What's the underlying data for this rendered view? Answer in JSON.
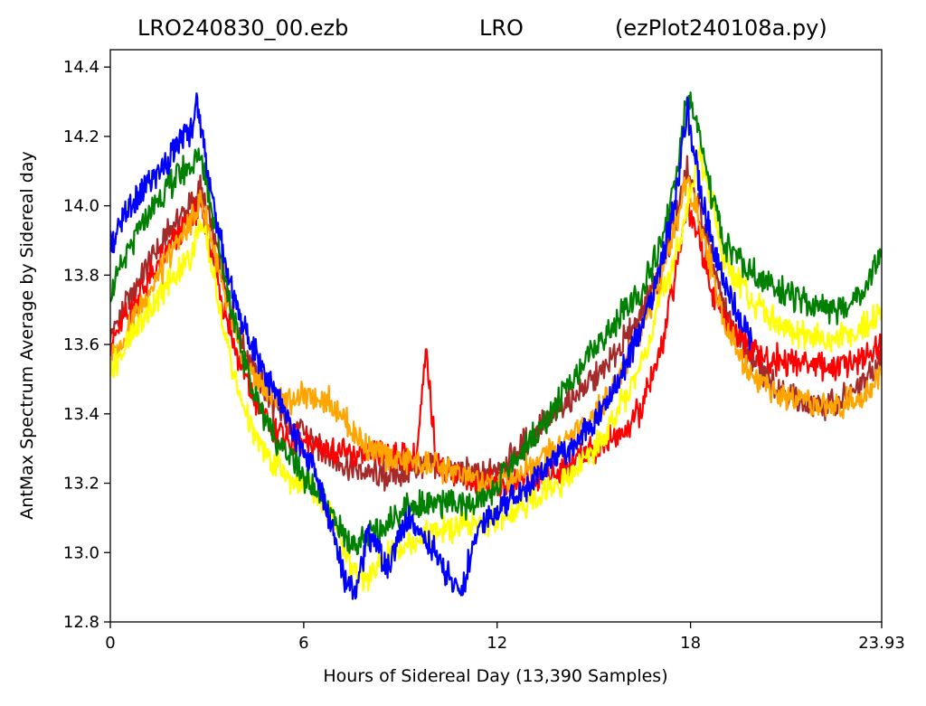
{
  "chart_data": {
    "type": "line",
    "title_parts": [
      "LRO240830_00.ezb",
      "LRO",
      "(ezPlot240108a.py)"
    ],
    "xlabel": "Hours of Sidereal Day  (13,390 Samples)",
    "ylabel": "AntMax Spectrum Average by Sidereal day",
    "xlim": [
      0,
      23.93
    ],
    "ylim": [
      12.8,
      14.45
    ],
    "x_ticks": [
      0,
      6,
      12,
      18,
      23.93
    ],
    "x_tick_labels": [
      "0",
      "6",
      "12",
      "18",
      "23.93"
    ],
    "y_ticks": [
      12.8,
      13.0,
      13.2,
      13.4,
      13.6,
      13.8,
      14.0,
      14.2,
      14.4
    ],
    "y_tick_labels": [
      "12.8",
      "13.0",
      "13.2",
      "13.4",
      "13.6",
      "13.8",
      "14.0",
      "14.2",
      "14.4"
    ],
    "grid": false,
    "series": [
      {
        "color": "#a52a2a",
        "x": [
          0,
          0.5,
          1,
          1.5,
          2,
          2.5,
          2.8,
          3.1,
          3.5,
          4,
          4.5,
          5,
          5.5,
          6,
          6.5,
          7,
          7.5,
          8,
          8.5,
          9,
          9.5,
          10,
          10.5,
          11,
          11.5,
          12,
          12.5,
          13,
          13.5,
          14,
          14.5,
          15,
          15.5,
          16,
          16.5,
          17,
          17.5,
          17.9,
          18.3,
          18.7,
          19,
          19.5,
          20,
          20.5,
          21,
          21.5,
          22,
          22.5,
          23,
          23.5,
          23.93
        ],
        "y": [
          13.62,
          13.72,
          13.8,
          13.88,
          13.95,
          14.0,
          14.05,
          13.95,
          13.8,
          13.62,
          13.52,
          13.43,
          13.38,
          13.34,
          13.3,
          13.27,
          13.24,
          13.23,
          13.22,
          13.23,
          13.24,
          13.25,
          13.24,
          13.23,
          13.22,
          13.24,
          13.28,
          13.33,
          13.38,
          13.42,
          13.46,
          13.5,
          13.55,
          13.62,
          13.7,
          13.8,
          13.95,
          14.1,
          13.98,
          13.82,
          13.72,
          13.62,
          13.54,
          13.5,
          13.46,
          13.43,
          13.42,
          13.43,
          13.46,
          13.5,
          13.55
        ]
      },
      {
        "color": "#ff0000",
        "x": [
          0,
          0.5,
          1,
          1.5,
          2,
          2.5,
          2.8,
          3.1,
          3.5,
          4,
          4.5,
          5,
          5.5,
          6,
          6.5,
          7,
          7.5,
          8,
          8.5,
          9,
          9.5,
          9.8,
          10.1,
          10.5,
          11,
          11.5,
          12,
          12.5,
          13,
          13.5,
          14,
          14.5,
          15,
          15.5,
          16,
          16.5,
          17,
          17.5,
          17.9,
          18.3,
          18.7,
          19,
          19.5,
          20,
          20.5,
          21,
          21.5,
          22,
          22.5,
          23,
          23.5,
          23.93
        ],
        "y": [
          13.6,
          13.68,
          13.76,
          13.83,
          13.9,
          13.96,
          14.0,
          13.88,
          13.72,
          13.55,
          13.43,
          13.36,
          13.33,
          13.31,
          13.3,
          13.29,
          13.28,
          13.28,
          13.28,
          13.28,
          13.27,
          13.58,
          13.27,
          13.24,
          13.22,
          13.2,
          13.2,
          13.2,
          13.21,
          13.22,
          13.24,
          13.27,
          13.3,
          13.32,
          13.35,
          13.42,
          13.55,
          13.78,
          14.0,
          13.9,
          13.75,
          13.68,
          13.62,
          13.58,
          13.56,
          13.55,
          13.55,
          13.54,
          13.53,
          13.55,
          13.57,
          13.6
        ]
      },
      {
        "color": "#ffa500",
        "x": [
          0,
          0.5,
          1,
          1.5,
          2,
          2.5,
          2.8,
          3.1,
          3.5,
          4,
          4.5,
          5,
          5.5,
          6,
          6.5,
          7,
          7.5,
          8,
          8.5,
          9,
          9.5,
          10,
          10.5,
          11,
          11.5,
          12,
          12.5,
          13,
          13.5,
          14,
          14.5,
          15,
          15.5,
          16,
          16.5,
          17,
          17.5,
          17.9,
          18.3,
          18.7,
          19,
          19.5,
          20,
          20.5,
          21,
          21.5,
          22,
          22.5,
          23,
          23.5,
          23.93
        ],
        "y": [
          13.55,
          13.64,
          13.72,
          13.8,
          13.88,
          13.95,
          14.02,
          13.92,
          13.75,
          13.58,
          13.5,
          13.45,
          13.44,
          13.45,
          13.45,
          13.42,
          13.35,
          13.3,
          13.28,
          13.27,
          13.26,
          13.25,
          13.24,
          13.22,
          13.2,
          13.2,
          13.22,
          13.25,
          13.28,
          13.31,
          13.35,
          13.4,
          13.46,
          13.55,
          13.65,
          13.78,
          13.93,
          14.08,
          13.95,
          13.8,
          13.68,
          13.57,
          13.5,
          13.46,
          13.44,
          13.43,
          13.42,
          13.42,
          13.44,
          13.47,
          13.52
        ]
      },
      {
        "color": "#ffff00",
        "x": [
          0,
          0.5,
          1,
          1.5,
          2,
          2.5,
          2.8,
          3.1,
          3.5,
          4,
          4.5,
          5,
          5.5,
          6,
          6.5,
          7,
          7.5,
          8,
          8.5,
          9,
          9.5,
          10,
          10.5,
          11,
          11.5,
          12,
          12.5,
          13,
          13.5,
          14,
          14.5,
          15,
          15.5,
          16,
          16.5,
          17,
          17.5,
          17.9,
          18.3,
          18.7,
          19,
          19.5,
          20,
          20.5,
          21,
          21.5,
          22,
          22.5,
          23,
          23.5,
          23.93
        ],
        "y": [
          13.53,
          13.6,
          13.67,
          13.74,
          13.8,
          13.86,
          13.95,
          13.85,
          13.65,
          13.45,
          13.33,
          13.26,
          13.22,
          13.2,
          13.15,
          13.08,
          12.95,
          12.92,
          12.98,
          13.02,
          13.04,
          13.06,
          13.07,
          13.07,
          13.08,
          13.1,
          13.12,
          13.15,
          13.18,
          13.2,
          13.24,
          13.3,
          13.36,
          13.45,
          13.55,
          13.7,
          13.85,
          14.0,
          14.15,
          14.0,
          13.85,
          13.78,
          13.72,
          13.68,
          13.64,
          13.62,
          13.62,
          13.62,
          13.63,
          13.66,
          13.7
        ]
      },
      {
        "color": "#008000",
        "x": [
          0,
          0.5,
          1,
          1.5,
          2,
          2.5,
          2.8,
          3.1,
          3.5,
          4,
          4.5,
          5,
          5.5,
          6,
          6.5,
          7,
          7.5,
          8,
          8.5,
          9,
          9.5,
          10,
          10.5,
          11,
          11.5,
          12,
          12.5,
          13,
          13.5,
          14,
          14.5,
          15,
          15.5,
          16,
          16.5,
          17,
          17.5,
          17.9,
          18.3,
          18.7,
          19,
          19.5,
          20,
          20.5,
          21,
          21.5,
          22,
          22.5,
          23,
          23.5,
          23.93
        ],
        "y": [
          13.75,
          13.85,
          13.95,
          14.02,
          14.08,
          14.12,
          14.15,
          14.02,
          13.82,
          13.6,
          13.45,
          13.35,
          13.28,
          13.22,
          13.16,
          13.08,
          13.02,
          13.04,
          13.08,
          13.12,
          13.14,
          13.15,
          13.14,
          13.13,
          13.15,
          13.2,
          13.26,
          13.32,
          13.38,
          13.45,
          13.52,
          13.58,
          13.64,
          13.7,
          13.76,
          13.86,
          14.05,
          14.32,
          14.2,
          14.0,
          13.9,
          13.84,
          13.8,
          13.77,
          13.74,
          13.72,
          13.71,
          13.7,
          13.72,
          13.77,
          13.85
        ]
      },
      {
        "color": "#0000ff",
        "x": [
          0,
          0.5,
          1,
          1.5,
          2,
          2.5,
          2.7,
          2.9,
          3.2,
          3.6,
          4,
          4.5,
          5,
          5.5,
          6,
          6.5,
          7,
          7.3,
          7.6,
          8,
          8.3,
          8.6,
          9,
          9.3,
          9.6,
          10,
          10.3,
          10.6,
          10.9,
          11.2,
          11.5,
          12,
          12.5,
          13,
          13.5,
          14,
          14.5,
          15,
          15.5,
          16,
          16.5,
          17,
          17.5,
          17.9,
          18.3,
          18.7,
          19,
          19.3,
          19.6,
          19.9
        ],
        "y": [
          13.88,
          13.98,
          14.04,
          14.1,
          14.16,
          14.22,
          14.3,
          14.18,
          14.0,
          13.82,
          13.68,
          13.58,
          13.48,
          13.38,
          13.3,
          13.2,
          13.02,
          12.92,
          12.9,
          13.05,
          13.02,
          12.95,
          13.05,
          13.1,
          13.06,
          13.02,
          12.96,
          12.92,
          12.88,
          13.0,
          13.08,
          13.12,
          13.16,
          13.2,
          13.24,
          13.28,
          13.32,
          13.38,
          13.45,
          13.55,
          13.65,
          13.8,
          14.0,
          14.28,
          14.05,
          13.88,
          13.78,
          13.72,
          13.66,
          13.62
        ]
      }
    ]
  }
}
